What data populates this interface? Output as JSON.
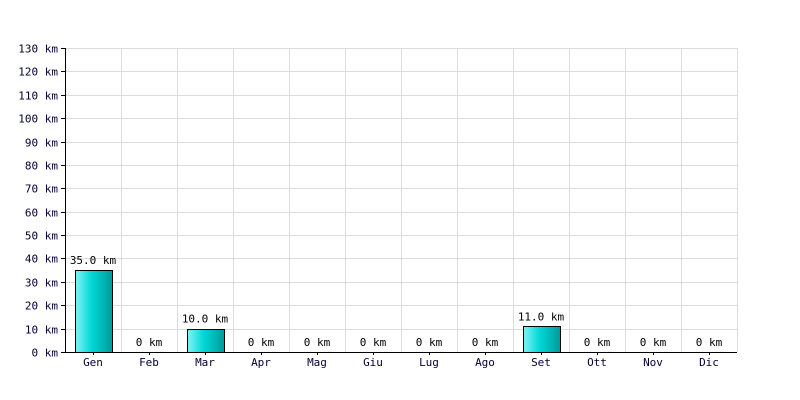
{
  "chart_data": {
    "type": "bar",
    "categories": [
      "Gen",
      "Feb",
      "Mar",
      "Apr",
      "Mag",
      "Giu",
      "Lug",
      "Ago",
      "Set",
      "Ott",
      "Nov",
      "Dic"
    ],
    "values": [
      35.0,
      0,
      10.0,
      0,
      0,
      0,
      0,
      0,
      11.0,
      0,
      0,
      0
    ],
    "value_labels": [
      "35.0 km",
      "0 km",
      "10.0 km",
      "0 km",
      "0 km",
      "0 km",
      "0 km",
      "0 km",
      "11.0 km",
      "0 km",
      "0 km",
      "0 km"
    ],
    "y_ticks": [
      0,
      10,
      20,
      30,
      40,
      50,
      60,
      70,
      80,
      90,
      100,
      110,
      120,
      130
    ],
    "y_tick_labels": [
      "0 km",
      "10 km",
      "20 km",
      "30 km",
      "40 km",
      "50 km",
      "60 km",
      "70 km",
      "80 km",
      "90 km",
      "100 km",
      "110 km",
      "120 km",
      "130 km"
    ],
    "ylim": [
      0,
      130
    ],
    "title": "",
    "xlabel": "",
    "ylabel": "",
    "grid": true,
    "legend": "none",
    "colors": {
      "bar_fill_light": "#7ff5f5",
      "bar_fill_mid": "#00d6d6",
      "bar_fill_dark": "#009a9a",
      "bar_stroke": "#000000",
      "grid": "#dcdcdc",
      "axis": "#000000",
      "tick_text": "#000033"
    }
  }
}
